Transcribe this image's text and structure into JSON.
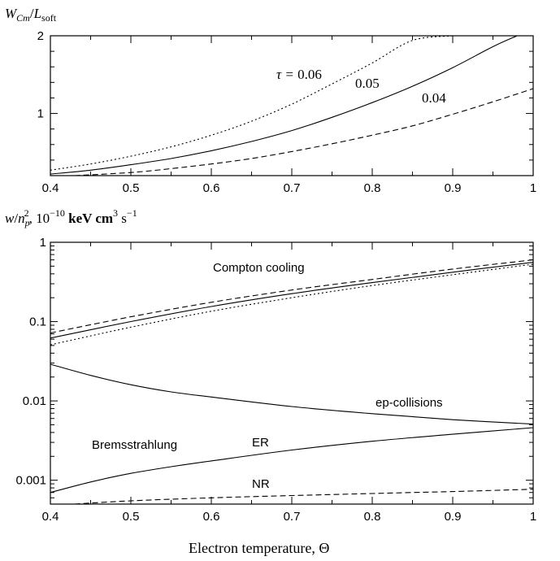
{
  "chart_data": [
    {
      "type": "line",
      "ylabel_parts": {
        "sym": "W",
        "sub": "Cm",
        "slash": "/",
        "sym2": "L",
        "sub2": "soft"
      },
      "xlim": [
        0.4,
        1.0
      ],
      "ylim": [
        0.2,
        2.0
      ],
      "x_ticks": [
        "0.4",
        "0.5",
        "0.6",
        "0.7",
        "0.8",
        "0.9",
        "1"
      ],
      "y_ticks": [
        "1",
        "2"
      ],
      "annotations": {
        "tau_prefix": "τ = ",
        "tau_006": "0.06",
        "tau_005": "0.05",
        "tau_004": "0.04"
      },
      "series": [
        {
          "style": "dotted",
          "x": [
            0.4,
            0.45,
            0.5,
            0.55,
            0.6,
            0.65,
            0.7,
            0.75,
            0.8,
            0.85,
            0.9
          ],
          "y": [
            0.27,
            0.35,
            0.45,
            0.57,
            0.72,
            0.9,
            1.12,
            1.38,
            1.65,
            1.94,
            2.0
          ]
        },
        {
          "style": "solid",
          "x": [
            0.4,
            0.45,
            0.5,
            0.55,
            0.6,
            0.65,
            0.7,
            0.75,
            0.8,
            0.85,
            0.9,
            0.95,
            0.98
          ],
          "y": [
            0.22,
            0.27,
            0.34,
            0.42,
            0.52,
            0.64,
            0.78,
            0.95,
            1.14,
            1.35,
            1.59,
            1.86,
            2.0
          ]
        },
        {
          "style": "dashed",
          "x": [
            0.43,
            0.5,
            0.55,
            0.6,
            0.65,
            0.7,
            0.75,
            0.8,
            0.85,
            0.9,
            0.95,
            1.0
          ],
          "y": [
            0.2,
            0.24,
            0.29,
            0.35,
            0.42,
            0.51,
            0.61,
            0.72,
            0.84,
            0.99,
            1.15,
            1.32
          ]
        }
      ]
    },
    {
      "type": "line",
      "log_y": true,
      "ylabel_parts": {
        "w": "w",
        "np": "n",
        "np_sub": "p",
        "np_sup": "2",
        "rest": ", 10",
        "exp": "−10",
        "kev": " keV cm",
        "cm_sup": "3",
        "s": " s",
        "s_sup": "−1"
      },
      "xlabel_parts": {
        "text": "Electron temperature, ",
        "sym": "Θ"
      },
      "xlim": [
        0.4,
        1.0
      ],
      "ylim": [
        0.0005,
        1.0
      ],
      "x_ticks": [
        "0.4",
        "0.5",
        "0.6",
        "0.7",
        "0.8",
        "0.9",
        "1"
      ],
      "y_ticks": [
        "0.001",
        "0.01",
        "0.1",
        "1"
      ],
      "annotations": {
        "compton": "Compton cooling",
        "ep": "ep-collisions",
        "brems": "Bremsstrahlung",
        "er": "ER",
        "nr": "NR"
      },
      "series": [
        {
          "style": "dashed",
          "x": [
            0.4,
            0.5,
            0.6,
            0.7,
            0.8,
            0.9,
            1.0
          ],
          "y": [
            0.072,
            0.115,
            0.175,
            0.25,
            0.34,
            0.46,
            0.6
          ]
        },
        {
          "style": "solid",
          "x": [
            0.4,
            0.5,
            0.6,
            0.7,
            0.8,
            0.9,
            1.0
          ],
          "y": [
            0.062,
            0.1,
            0.155,
            0.225,
            0.31,
            0.42,
            0.56
          ]
        },
        {
          "style": "dotted",
          "x": [
            0.4,
            0.5,
            0.6,
            0.7,
            0.8,
            0.9,
            1.0
          ],
          "y": [
            0.051,
            0.085,
            0.135,
            0.2,
            0.285,
            0.39,
            0.53
          ]
        },
        {
          "style": "solid",
          "x": [
            0.4,
            0.45,
            0.5,
            0.55,
            0.6,
            0.7,
            0.8,
            0.9,
            1.0
          ],
          "y": [
            0.029,
            0.021,
            0.016,
            0.013,
            0.0112,
            0.0085,
            0.0069,
            0.0058,
            0.0051
          ]
        },
        {
          "style": "solid",
          "x": [
            0.4,
            0.45,
            0.5,
            0.55,
            0.6,
            0.7,
            0.8,
            0.9,
            1.0
          ],
          "y": [
            0.0007,
            0.00095,
            0.00122,
            0.00148,
            0.00175,
            0.0024,
            0.0031,
            0.0038,
            0.0046
          ]
        },
        {
          "style": "dashed",
          "x": [
            0.43,
            0.5,
            0.6,
            0.7,
            0.8,
            0.9,
            1.0
          ],
          "y": [
            0.0005,
            0.00055,
            0.0006,
            0.00064,
            0.00068,
            0.00072,
            0.00077
          ]
        }
      ]
    }
  ]
}
